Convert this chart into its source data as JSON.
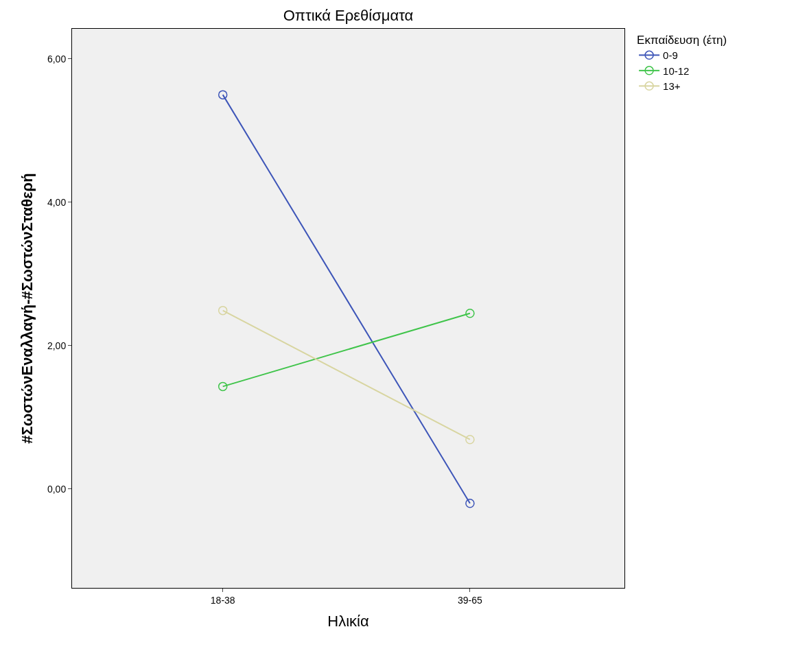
{
  "chart_data": {
    "type": "line",
    "title": "Οπτικά Ερεθίσματα",
    "xlabel": "Ηλικία",
    "ylabel": "#ΣωστώνΕναλλαγή-#ΣωστώνΣταθερή",
    "legend_title": "Εκπαίδευση (έτη)",
    "categories": [
      "18-38",
      "39-65"
    ],
    "series": [
      {
        "name": "0-9",
        "color": "#3d55b8",
        "values": [
          5.5,
          -0.2
        ]
      },
      {
        "name": "10-12",
        "color": "#3fc44a",
        "values": [
          1.43,
          2.45
        ]
      },
      {
        "name": "13+",
        "color": "#d8d5a0",
        "values": [
          2.49,
          0.69
        ]
      }
    ],
    "ylim": [
      -1.38,
      6.42
    ],
    "yticks": [
      {
        "value": 0,
        "label": "0,00"
      },
      {
        "value": 2,
        "label": "2,00"
      },
      {
        "value": 4,
        "label": "4,00"
      },
      {
        "value": 6,
        "label": "6,00"
      }
    ],
    "grid": false,
    "legend": "top right",
    "marker": "circle",
    "line_style": "solid"
  }
}
